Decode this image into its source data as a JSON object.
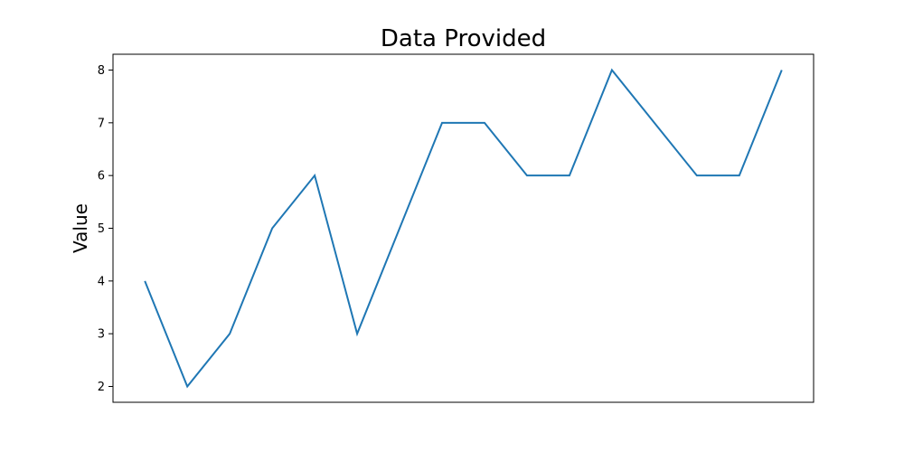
{
  "chart_data": {
    "type": "line",
    "title": "Data Provided",
    "xlabel": "",
    "ylabel": "Value",
    "x": [
      0,
      1,
      2,
      3,
      4,
      5,
      6,
      7,
      8,
      9,
      10,
      11,
      12,
      13,
      14,
      15
    ],
    "series": [
      {
        "values": [
          4,
          2,
          3,
          5,
          6,
          3,
          5,
          7,
          7,
          6,
          6,
          8,
          7,
          6,
          6,
          8
        ],
        "color": "#1f77b4"
      }
    ],
    "xlim": [
      -0.75,
      15.75
    ],
    "ylim": [
      1.7,
      8.3
    ],
    "yticks": [
      2,
      3,
      4,
      5,
      6,
      7,
      8
    ],
    "xticks_visible": false,
    "grid": false,
    "legend": "none"
  }
}
